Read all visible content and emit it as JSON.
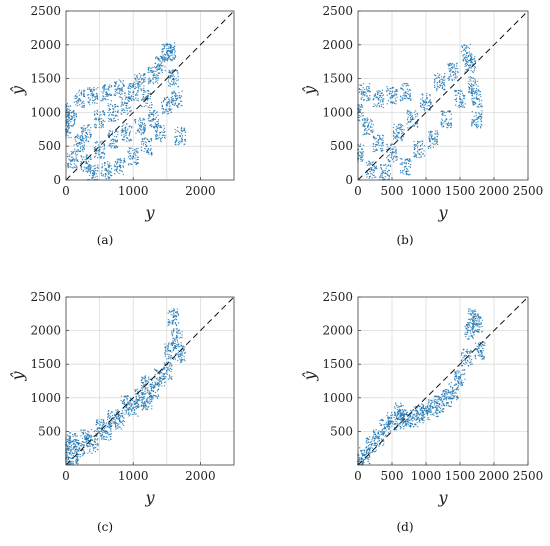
{
  "figure": {
    "point_color": "#1f77b4",
    "ref_line_color": "#111111",
    "grid": true
  },
  "chart_data": [
    {
      "type": "scatter",
      "panel_label": "(a)",
      "xlabel": "y",
      "ylabel": "ŷ",
      "xlim": [
        0,
        2500
      ],
      "ylim": [
        0,
        2500
      ],
      "xticks": [
        0,
        1000,
        2000
      ],
      "yticks": [
        0,
        500,
        1000,
        1500,
        2000,
        2500
      ],
      "reference_line": "y = x, dashed",
      "series": [
        {
          "points": [
            [
              0,
              1000
            ],
            [
              0,
              750
            ],
            [
              80,
              900
            ],
            [
              100,
              300
            ],
            [
              200,
              550
            ],
            [
              200,
              1200
            ],
            [
              300,
              250
            ],
            [
              300,
              700
            ],
            [
              400,
              100
            ],
            [
              400,
              1250
            ],
            [
              500,
              450
            ],
            [
              500,
              900
            ],
            [
              600,
              150
            ],
            [
              600,
              1300
            ],
            [
              700,
              600
            ],
            [
              700,
              1000
            ],
            [
              800,
              200
            ],
            [
              800,
              1350
            ],
            [
              900,
              700
            ],
            [
              900,
              1100
            ],
            [
              1000,
              350
            ],
            [
              1000,
              1300
            ],
            [
              1100,
              800
            ],
            [
              1100,
              1450
            ],
            [
              1200,
              500
            ],
            [
              1200,
              1200
            ],
            [
              1300,
              900
            ],
            [
              1300,
              1550
            ],
            [
              1400,
              700
            ],
            [
              1400,
              1700
            ],
            [
              1500,
              1100
            ],
            [
              1500,
              1880
            ],
            [
              1550,
              1900
            ],
            [
              1600,
              1500
            ],
            [
              1650,
              1200
            ],
            [
              1700,
              650
            ]
          ]
        }
      ]
    },
    {
      "type": "scatter",
      "panel_label": "(b)",
      "xlabel": "y",
      "ylabel": "ŷ",
      "xlim": [
        0,
        2500
      ],
      "ylim": [
        0,
        2500
      ],
      "xticks": [
        0,
        500,
        1000,
        1500,
        2000,
        2500
      ],
      "yticks": [
        0,
        500,
        1000,
        1500,
        2000,
        2500
      ],
      "reference_line": "y = x, dashed",
      "series": [
        {
          "points": [
            [
              0,
              1000
            ],
            [
              0,
              400
            ],
            [
              100,
              1300
            ],
            [
              150,
              800
            ],
            [
              200,
              150
            ],
            [
              300,
              1200
            ],
            [
              300,
              550
            ],
            [
              400,
              100
            ],
            [
              500,
              1250
            ],
            [
              500,
              400
            ],
            [
              600,
              700
            ],
            [
              700,
              200
            ],
            [
              700,
              1300
            ],
            [
              800,
              900
            ],
            [
              900,
              450
            ],
            [
              1000,
              1150
            ],
            [
              1100,
              600
            ],
            [
              1200,
              1450
            ],
            [
              1300,
              900
            ],
            [
              1400,
              1600
            ],
            [
              1500,
              1200
            ],
            [
              1600,
              1880
            ],
            [
              1650,
              1700
            ],
            [
              1700,
              1400
            ],
            [
              1750,
              900
            ],
            [
              1750,
              1200
            ]
          ]
        }
      ]
    },
    {
      "type": "scatter",
      "panel_label": "(c)",
      "xlabel": "y",
      "ylabel": "ŷ",
      "xlim": [
        0,
        2500
      ],
      "ylim": [
        0,
        2500
      ],
      "xticks": [
        0,
        1000,
        2000
      ],
      "yticks": [
        500,
        1000,
        1500,
        2000,
        2500
      ],
      "reference_line": "y = x, dashed",
      "series": [
        {
          "points": [
            [
              0,
              150
            ],
            [
              0,
              300
            ],
            [
              100,
              100
            ],
            [
              100,
              350
            ],
            [
              200,
              250
            ],
            [
              300,
              400
            ],
            [
              400,
              300
            ],
            [
              500,
              550
            ],
            [
              600,
              500
            ],
            [
              700,
              700
            ],
            [
              800,
              650
            ],
            [
              900,
              900
            ],
            [
              1000,
              850
            ],
            [
              1100,
              1000
            ],
            [
              1200,
              950
            ],
            [
              1200,
              1200
            ],
            [
              1300,
              1100
            ],
            [
              1400,
              1300
            ],
            [
              1500,
              1400
            ],
            [
              1550,
              1700
            ],
            [
              1600,
              2200
            ],
            [
              1650,
              1900
            ],
            [
              1700,
              1650
            ]
          ]
        }
      ]
    },
    {
      "type": "scatter",
      "panel_label": "(d)",
      "xlabel": "y",
      "ylabel": "ŷ",
      "xlim": [
        0,
        2500
      ],
      "ylim": [
        0,
        2500
      ],
      "xticks": [
        0,
        500,
        1000,
        1500,
        2000,
        2500
      ],
      "yticks": [
        500,
        1000,
        1500,
        2000,
        2500
      ],
      "reference_line": "y = x, dashed",
      "series": [
        {
          "points": [
            [
              0,
              50
            ],
            [
              100,
              150
            ],
            [
              200,
              300
            ],
            [
              300,
              400
            ],
            [
              400,
              550
            ],
            [
              500,
              650
            ],
            [
              600,
              800
            ],
            [
              650,
              700
            ],
            [
              700,
              650
            ],
            [
              800,
              700
            ],
            [
              900,
              750
            ],
            [
              1000,
              800
            ],
            [
              1100,
              850
            ],
            [
              1200,
              900
            ],
            [
              1300,
              1000
            ],
            [
              1400,
              1100
            ],
            [
              1500,
              1300
            ],
            [
              1600,
              1600
            ],
            [
              1650,
              2000
            ],
            [
              1700,
              2200
            ],
            [
              1750,
              2100
            ],
            [
              1800,
              1700
            ]
          ]
        }
      ]
    }
  ]
}
